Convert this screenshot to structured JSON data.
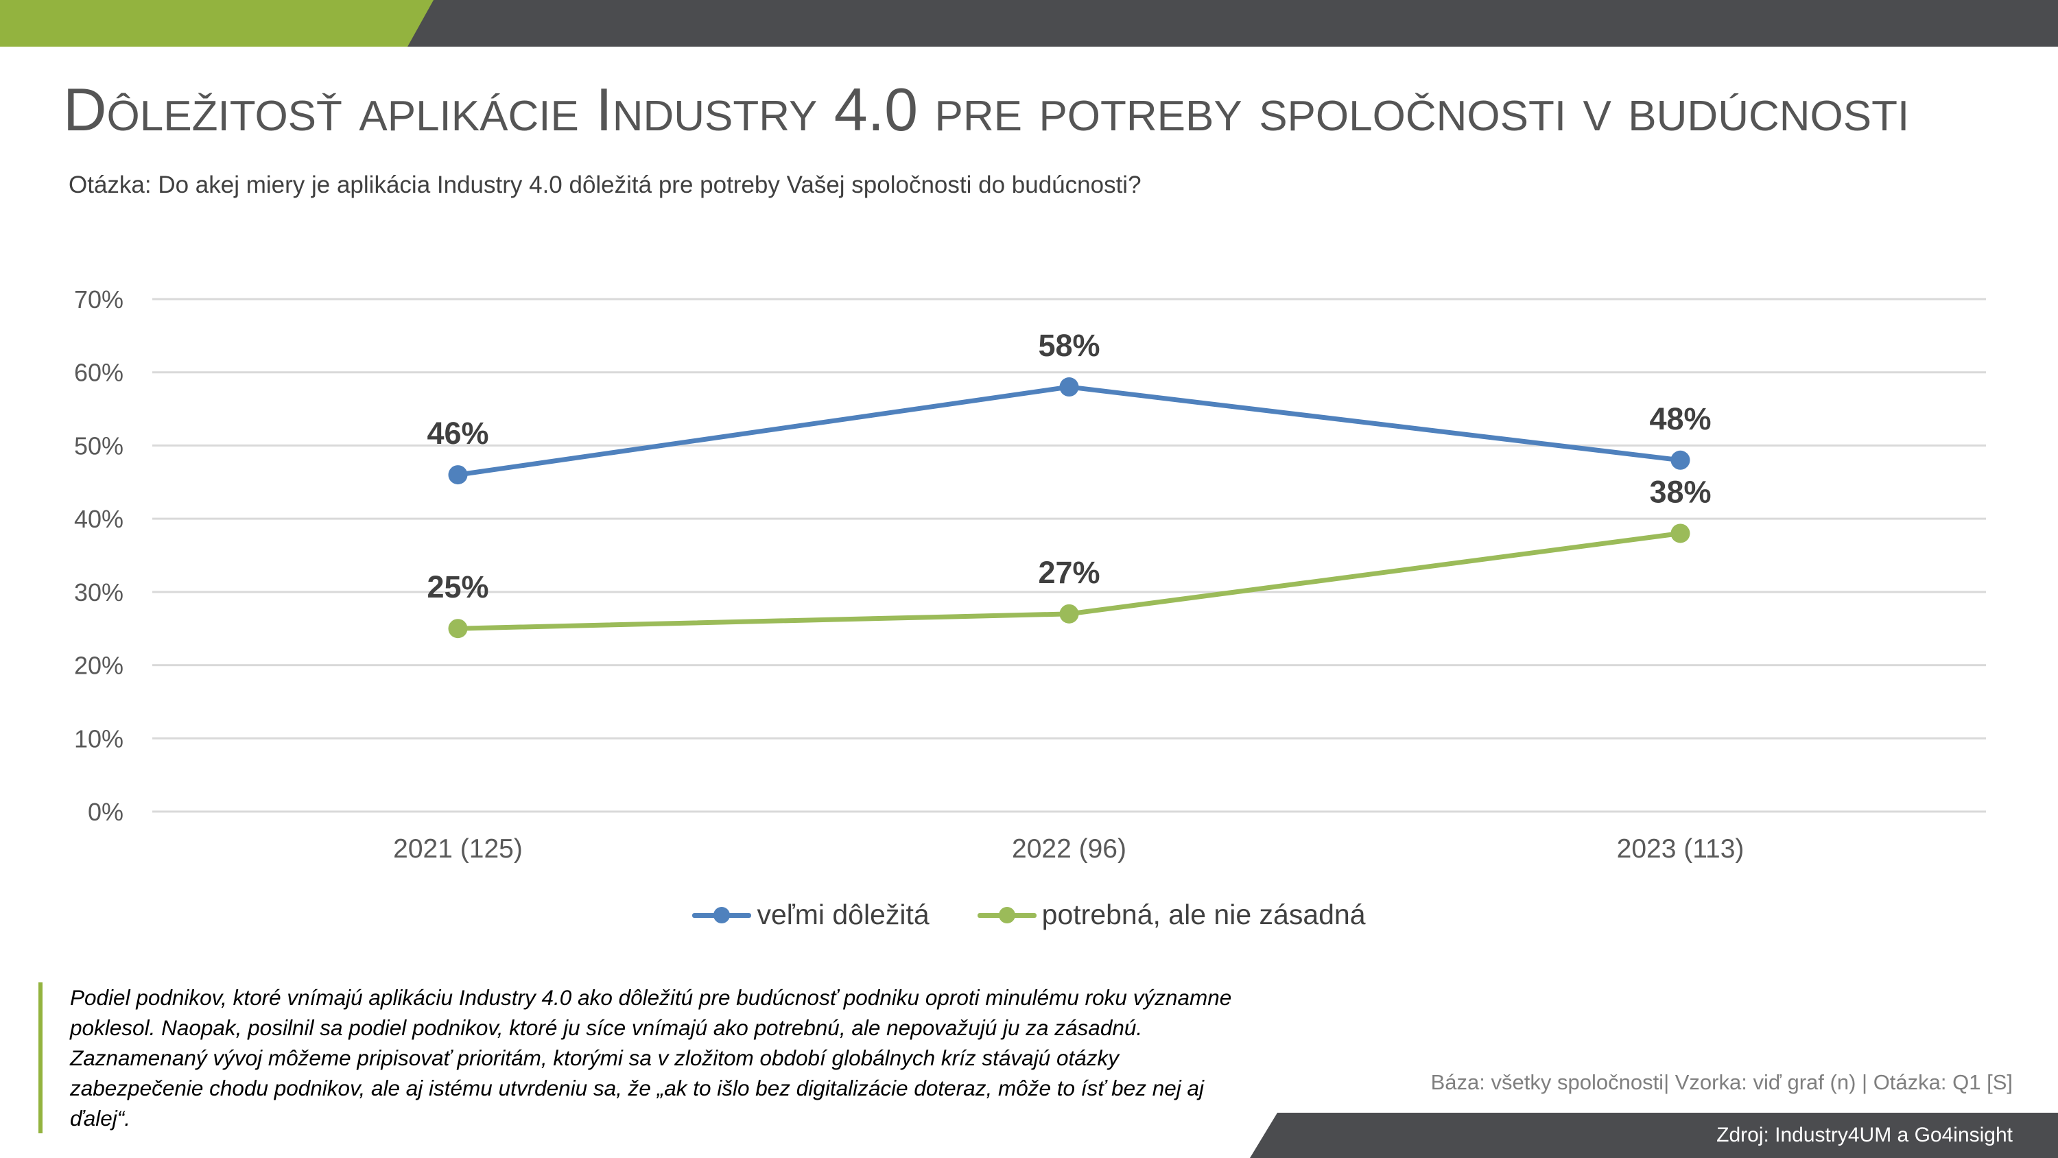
{
  "title": "Dôležitosť aplikácie Industry 4.0 pre potreby spoločnosti v budúcnosti",
  "subtitle": "Otázka: Do akej miery je aplikácia Industry 4.0 dôležitá pre potreby Vašej spoločnosti do budúcnosti?",
  "chart_data": {
    "type": "line",
    "categories": [
      "2021 (125)",
      "2022 (96)",
      "2023 (113)"
    ],
    "series": [
      {
        "name": "veľmi dôležitá",
        "values": [
          46,
          58,
          48
        ],
        "labels": [
          "46%",
          "58%",
          "48%"
        ],
        "color": "#4f81bd"
      },
      {
        "name": "potrebná, ale nie zásadná",
        "values": [
          25,
          27,
          38
        ],
        "labels": [
          "25%",
          "27%",
          "38%"
        ],
        "color": "#9bbb59"
      }
    ],
    "ylim": [
      0,
      70
    ],
    "yticks": [
      "0%",
      "10%",
      "20%",
      "30%",
      "40%",
      "50%",
      "60%",
      "70%"
    ],
    "grid": true,
    "legend_position": "bottom",
    "xlabel": "",
    "ylabel": ""
  },
  "note": "Podiel podnikov, ktoré vnímajú aplikáciu Industry 4.0 ako dôležitú pre budúcnosť podniku oproti minulému roku významne poklesol. Naopak, posilnil sa podiel podnikov, ktoré ju síce vnímajú ako potrebnú, ale nepovažujú ju za zásadnú. Zaznamenaný vývoj môžeme pripisovať prioritám, ktorými sa v zložitom období globálnych kríz stávajú otázky zabezpečenie chodu podnikov, ale aj istému utvrdeniu sa, že „ak to išlo bez digitalizácie doteraz, môže to ísť bez nej aj ďalej“.",
  "basis": "Báza: všetky spoločnosti| Vzorka: viď graf (n) | Otázka: Q1 [S]",
  "source": "Zdroj: Industry4UM a Go4insight",
  "colors": {
    "accent": "#93b33f",
    "bar": "#4b4c4f"
  }
}
